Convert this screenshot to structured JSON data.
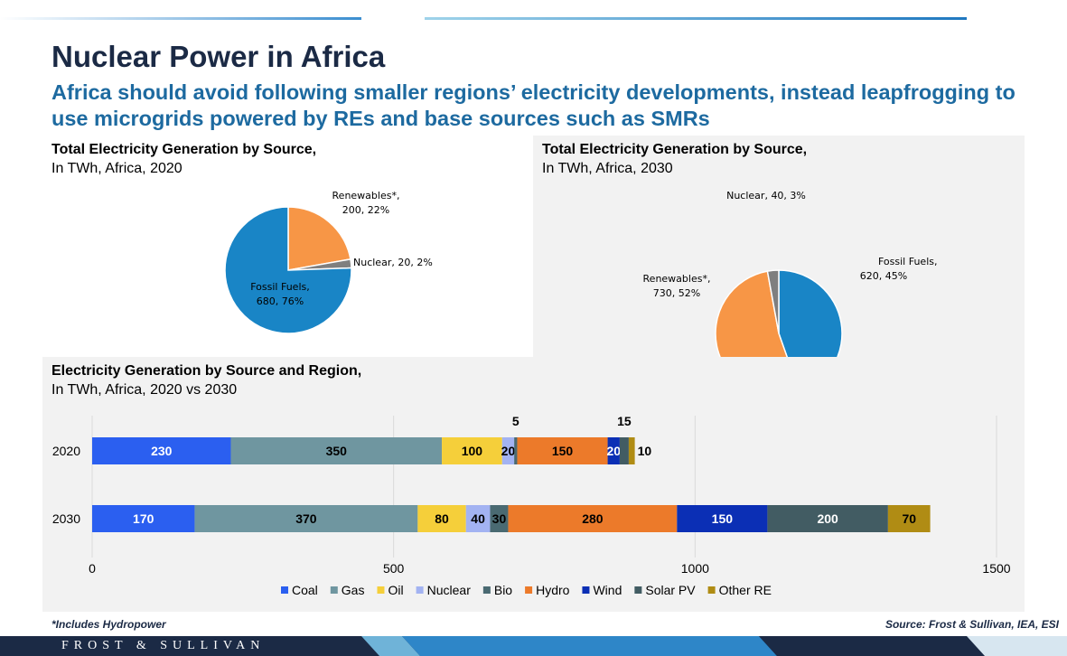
{
  "header": {
    "title": "Nuclear Power in Africa",
    "subtitle": "Africa should avoid following smaller regions’ electricity developments, instead leapfrogging to use microgrids powered by REs and base sources such as SMRs"
  },
  "colors": {
    "title": "#1b2a45",
    "subtitle": "#1d6aa0",
    "fossil": "#1985c6",
    "renewables": "#f79646",
    "nuclear_pie": "#7f7f7f",
    "coal": "#2b5ff0",
    "gas": "#6f96a0",
    "oil": "#f5cf3a",
    "nuclear": "#a3b3f2",
    "bio": "#4a6a72",
    "hydro": "#ec7a2a",
    "wind": "#0b2fb5",
    "solar_pv": "#425c63",
    "other_re": "#b08c14"
  },
  "chart_data": [
    {
      "type": "pie",
      "title": "Total Electricity Generation by Source,",
      "subtitle": "In TWh, Africa, 2020",
      "slices": [
        {
          "name": "Renewables*",
          "value": 200,
          "percent": 22,
          "label_line1": "Renewables*,",
          "label_line2": "200, 22%"
        },
        {
          "name": "Nuclear",
          "value": 20,
          "percent": 2,
          "label_line1": "Nuclear, 20, 2%"
        },
        {
          "name": "Fossil Fuels",
          "value": 680,
          "percent": 76,
          "label_line1": "Fossil Fuels,",
          "label_line2": "680, 76%"
        }
      ]
    },
    {
      "type": "pie",
      "title": "Total Electricity Generation by Source,",
      "subtitle": "In TWh, Africa, 2030",
      "slices": [
        {
          "name": "Fossil Fuels",
          "value": 620,
          "percent": 45,
          "label_line1": "Fossil Fuels,",
          "label_line2": "620, 45%"
        },
        {
          "name": "Renewables*",
          "value": 730,
          "percent": 52,
          "label_line1": "Renewables*,",
          "label_line2": "730, 52%"
        },
        {
          "name": "Nuclear",
          "value": 40,
          "percent": 3,
          "label_line1": "Nuclear, 40, 3%"
        }
      ]
    },
    {
      "type": "bar",
      "orientation": "horizontal",
      "stacked": true,
      "title": "Electricity Generation by Source and Region,",
      "subtitle": "In TWh, Africa, 2020 vs 2030",
      "categories": [
        "2020",
        "2030"
      ],
      "xlim": [
        0,
        1500
      ],
      "xticks": [
        0,
        500,
        1000,
        1500
      ],
      "grid": true,
      "legend_position": "bottom",
      "series": [
        {
          "name": "Coal",
          "values": [
            230,
            170
          ],
          "labels": [
            "230",
            "170"
          ]
        },
        {
          "name": "Gas",
          "values": [
            350,
            370
          ],
          "labels": [
            "350",
            "370"
          ]
        },
        {
          "name": "Oil",
          "values": [
            100,
            80
          ],
          "labels": [
            "100",
            "80"
          ]
        },
        {
          "name": "Nuclear",
          "values": [
            20,
            40
          ],
          "labels": [
            "20",
            "40"
          ]
        },
        {
          "name": "Bio",
          "values": [
            5,
            30
          ],
          "labels": [
            "5",
            "30"
          ]
        },
        {
          "name": "Hydro",
          "values": [
            150,
            280
          ],
          "labels": [
            "150",
            "280"
          ]
        },
        {
          "name": "Wind",
          "values": [
            20,
            150
          ],
          "labels": [
            "20",
            "150"
          ]
        },
        {
          "name": "Solar PV",
          "values": [
            15,
            200
          ],
          "labels": [
            "15",
            "200"
          ]
        },
        {
          "name": "Other RE",
          "values": [
            10,
            70
          ],
          "labels": [
            "10",
            "70"
          ]
        }
      ]
    }
  ],
  "footer": {
    "footnote": "*Includes Hydropower",
    "source": "Source: Frost & Sullivan, IEA, ESI",
    "brand": "FROST & SULLIVAN"
  }
}
